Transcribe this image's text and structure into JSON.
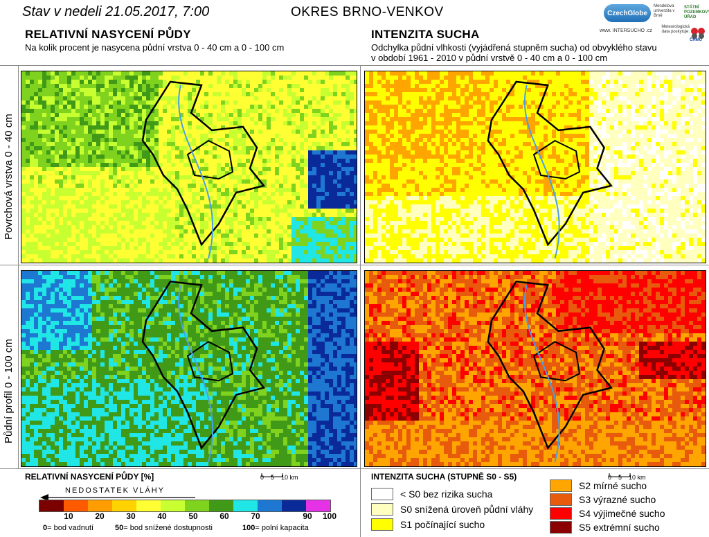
{
  "header": {
    "date": "Stav v nedeli 21.05.2017, 7:00",
    "district": "OKRES BRNO-VENKOV",
    "logos": {
      "czechglobe": "CzechGlobe",
      "mendel": "Mendelova univerzita v Brně",
      "szu": "STÁTNÍ POZEMKOVÝ ÚŘAD",
      "www": "www. INTERSUCHO .cz",
      "meteo": "Meteorologická data poskytuje:",
      "chmi": "ČHMÚ"
    }
  },
  "left": {
    "title": "RELATIVNÍ NASYCENÍ PŮDY",
    "subtitle": "Na kolik procent je nasycena půdní vrstva 0 - 40 cm a 0 - 100 cm"
  },
  "right": {
    "title": "INTENZITA SUCHA",
    "subtitle_line1": "Odchylka půdní vlhkosti (vyjádřená stupněm sucha) od obvyklého stavu",
    "subtitle_line2": "v období 1961 - 2010 v půdní vrstvě 0 - 40 cm a 0 - 100 cm"
  },
  "row_labels": {
    "top": "Povrchová vrstva 0 - 40 cm",
    "bottom": "Půdní profil 0 - 100 cm"
  },
  "scalebar": {
    "zero": "0",
    "five": "5",
    "ten": "10 km"
  },
  "legend_left": {
    "title": "RELATIVNÍ NASYCENÍ PŮDY [%]",
    "arrow_label": "NEDOSTATEK VLÁHY",
    "colors": [
      "#7b0000",
      "#ff5a00",
      "#ff9d00",
      "#ffd200",
      "#ffff33",
      "#c8ff30",
      "#7fd21e",
      "#409a18",
      "#20e6e6",
      "#1e78d2",
      "#0a2a9a",
      "#e632e6"
    ],
    "ticks": [
      "10",
      "20",
      "30",
      "40",
      "50",
      "60",
      "70",
      "90",
      "100"
    ],
    "notes": {
      "n0": "0",
      "n0_text": "= bod vadnutí",
      "n50": "50",
      "n50_text": "= bod snížené dostupnosti",
      "n100": "100",
      "n100_text": "= polní kapacita"
    }
  },
  "legend_right": {
    "title": "INTENZITA SUCHA (STUPNĚ S0 - S5)",
    "items": [
      {
        "label": "< S0 bez rizika sucha",
        "color": "#ffffff"
      },
      {
        "label": "S0 snížená úroveň půdní vláhy",
        "color": "#ffffc0"
      },
      {
        "label": "S1 počínající sucho",
        "color": "#ffff00"
      },
      {
        "label": "S2 mírné sucho",
        "color": "#ffa500"
      },
      {
        "label": "S3 výrazné sucho",
        "color": "#e85a0c"
      },
      {
        "label": "S4 výjimečné sucho",
        "color": "#ff0000"
      },
      {
        "label": "S5 extrémní sucho",
        "color": "#8b0000"
      }
    ]
  },
  "map_colors": {
    "green_light": "#c8ff30",
    "green_mid": "#7fd21e",
    "green_dark": "#409a18",
    "yellow": "#ffff33",
    "cyan": "#20e6e6",
    "blue": "#1e78d2",
    "navy": "#0a2a9a",
    "water": "#4aa0e8"
  }
}
